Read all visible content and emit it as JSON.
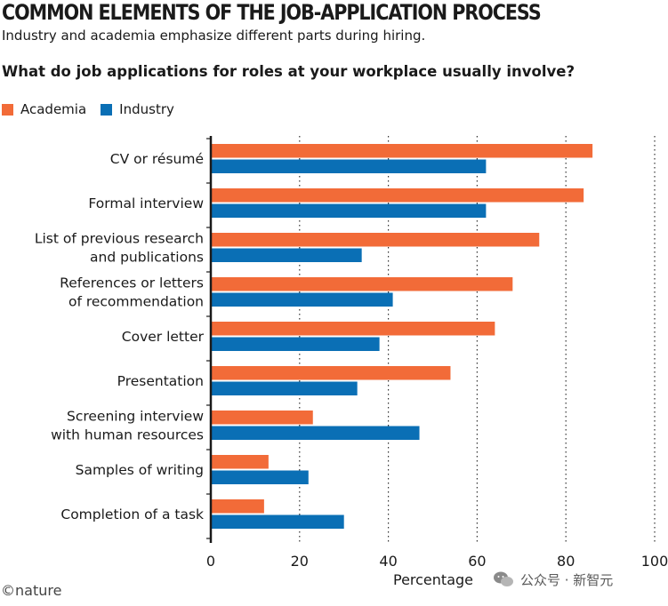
{
  "header": {
    "title": "COMMON ELEMENTS OF THE JOB-APPLICATION PROCESS",
    "subtitle": "Industry and academia emphasize different parts during hiring.",
    "question": "What do job applications for roles at your workplace usually involve?"
  },
  "footer": {
    "brand": "©nature",
    "watermark": "公众号 · 新智元"
  },
  "colors": {
    "academia": "#F26B38",
    "industry": "#0A6FB5",
    "grid": "#333333",
    "axis": "#1a1a1a"
  },
  "chart_data": {
    "type": "bar",
    "orientation": "horizontal",
    "categories": [
      [
        "CV or résumé"
      ],
      [
        "Formal interview"
      ],
      [
        "List of previous research",
        "and publications"
      ],
      [
        "References or letters",
        "of recommendation"
      ],
      [
        "Cover letter"
      ],
      [
        "Presentation"
      ],
      [
        "Screening interview",
        "with human resources"
      ],
      [
        "Samples of writing"
      ],
      [
        "Completion of a task"
      ]
    ],
    "series": [
      {
        "name": "Academia",
        "values": [
          86,
          84,
          74,
          68,
          64,
          54,
          23,
          13,
          12
        ]
      },
      {
        "name": "Industry",
        "values": [
          62,
          62,
          34,
          41,
          38,
          33,
          47,
          22,
          30
        ]
      }
    ],
    "xlabel": "Percentage",
    "xlim": [
      0,
      100
    ],
    "xticks": [
      0,
      20,
      40,
      60,
      80,
      100
    ],
    "grid": "vertical dotted",
    "legend": "top-left"
  }
}
